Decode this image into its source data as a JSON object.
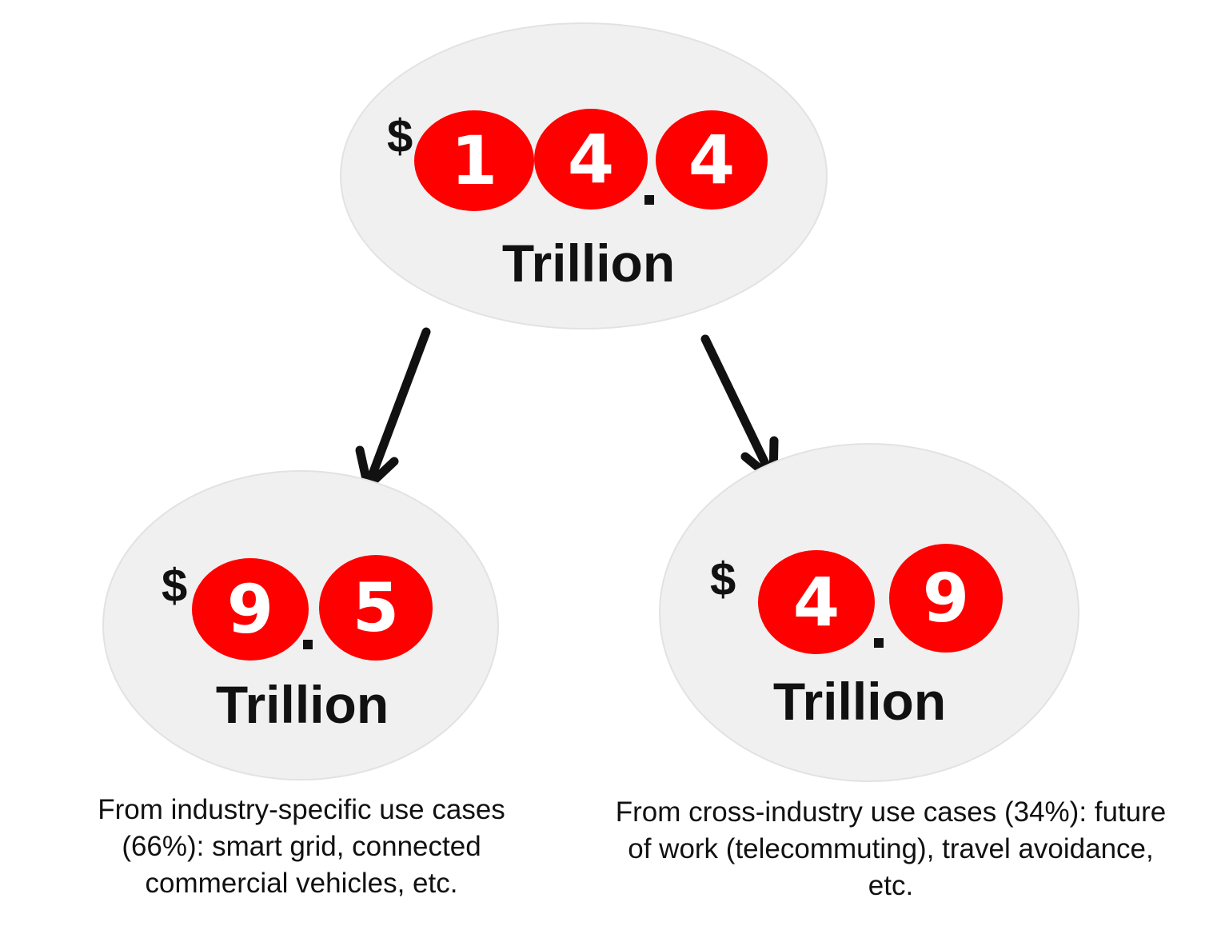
{
  "colors": {
    "bubble_fill": "#f0f0f0",
    "digit_fill": "#ff0000",
    "digit_text": "#ffffff",
    "text": "#111111"
  },
  "total": {
    "currency_symbol": "$",
    "digits": [
      "1",
      "4",
      "4"
    ],
    "decimal": ".",
    "unit": "Trillion"
  },
  "left": {
    "currency_symbol": "$",
    "digits": [
      "9",
      "5"
    ],
    "decimal": ".",
    "unit": "Trillion",
    "caption": "From industry-specific use cases (66%): smart grid, connected commercial vehicles, etc."
  },
  "right": {
    "currency_symbol": "$",
    "digits": [
      "4",
      "9"
    ],
    "decimal": ".",
    "unit": "Trillion",
    "caption": "From cross-industry use cases (34%): future of work (telecommuting), travel avoidance, etc."
  },
  "arrows": [
    "total-to-left",
    "total-to-right"
  ]
}
